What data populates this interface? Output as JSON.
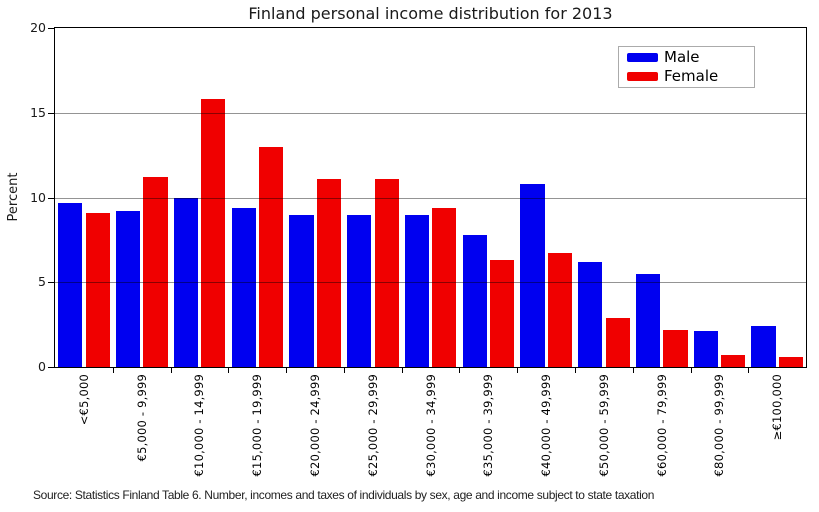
{
  "chart_data": {
    "type": "bar",
    "title": "Finland personal income distribution for 2013",
    "xlabel": "",
    "ylabel": "Percent",
    "ylim": [
      0,
      20
    ],
    "yticks": [
      0,
      5,
      10,
      15,
      20
    ],
    "gridlines": [
      5,
      10,
      15
    ],
    "grid": true,
    "legend_position": "top-right",
    "categories": [
      "<€5,000",
      "€5,000 - 9,999",
      "€10,000 - 14,999",
      "€15,000 - 19,999",
      "€20,000 - 24,999",
      "€25,000 - 29,999",
      "€30,000 - 34,999",
      "€35,000 - 39,999",
      "€40,000 - 49,999",
      "€50,000 - 59,999",
      "€60,000 - 79,999",
      "€80,000 - 99,999",
      "≥€100,000"
    ],
    "series": [
      {
        "name": "Male",
        "color": "#0000f0",
        "values": [
          9.7,
          9.2,
          10.0,
          9.4,
          9.0,
          9.0,
          9.0,
          7.8,
          10.8,
          6.2,
          5.5,
          2.1,
          2.4
        ]
      },
      {
        "name": "Female",
        "color": "#f00000",
        "values": [
          9.1,
          11.2,
          15.8,
          13.0,
          11.1,
          11.1,
          9.4,
          6.3,
          6.7,
          2.9,
          2.2,
          0.7,
          0.6
        ]
      }
    ],
    "source_note": "Source: Statistics Finland Table 6. Number, incomes and taxes of individuals by sex, age and income subject to state taxation"
  }
}
